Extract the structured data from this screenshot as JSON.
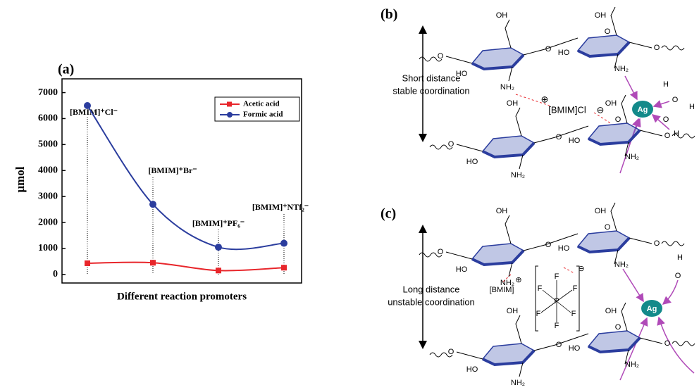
{
  "chart_data": {
    "type": "line",
    "title": "(a)",
    "x_label": "Different reaction promoters",
    "y_label": "μmol",
    "categories": [
      "[BMIM]⁺Cl⁻",
      "[BMIM]⁺Br⁻",
      "[BMIM]⁺PF₆⁻",
      "[BMIM]⁺NTf₂⁻"
    ],
    "series": [
      {
        "name": "Acetic acid",
        "color": "#e8262b",
        "marker": "square",
        "values": [
          430,
          450,
          150,
          260
        ]
      },
      {
        "name": "Formic acid",
        "color": "#2b3d9e",
        "marker": "circle",
        "values": [
          6500,
          2700,
          1050,
          1200
        ]
      }
    ],
    "ylim": [
      -330,
      7530
    ],
    "yticks": [
      0,
      1000,
      2000,
      3000,
      4000,
      5000,
      6000,
      7000
    ],
    "legend": "upper right",
    "grid": false
  },
  "diagram_b": {
    "label": "(b)",
    "caption": [
      "Short distance",
      "stable coordination"
    ],
    "chain_labels": [
      [
        "O",
        "HO",
        "OH",
        "NH₂",
        "O",
        "HO",
        "O",
        "OH",
        "NH₂",
        "O"
      ],
      [
        "O",
        "HO",
        "OH",
        "NH₂",
        "O",
        "HO",
        "O",
        "OH",
        "NH₂",
        "O"
      ]
    ],
    "ion": [
      "⊕",
      "[BMIM]Cl",
      "⊖"
    ],
    "metal": "Ag",
    "water": [
      "H",
      "O",
      "H",
      "O",
      "H"
    ]
  },
  "diagram_c": {
    "label": "(c)",
    "caption": [
      "Long distance",
      "unstable coordination"
    ],
    "chain_labels": [
      [
        "O",
        "HO",
        "OH",
        "NH₂",
        "O",
        "HO",
        "O",
        "OH",
        "NH₂",
        "O"
      ],
      [
        "O",
        "HO",
        "OH",
        "NH₂",
        "O",
        "HO",
        "O",
        "OH",
        "NH₂",
        "O"
      ]
    ],
    "ion": [
      "[BMIM]",
      "⊕",
      "⊖",
      "P",
      "F",
      "F",
      "F",
      "F",
      "F",
      "F"
    ],
    "metal": "Ag",
    "water": [
      "H",
      "O"
    ]
  }
}
